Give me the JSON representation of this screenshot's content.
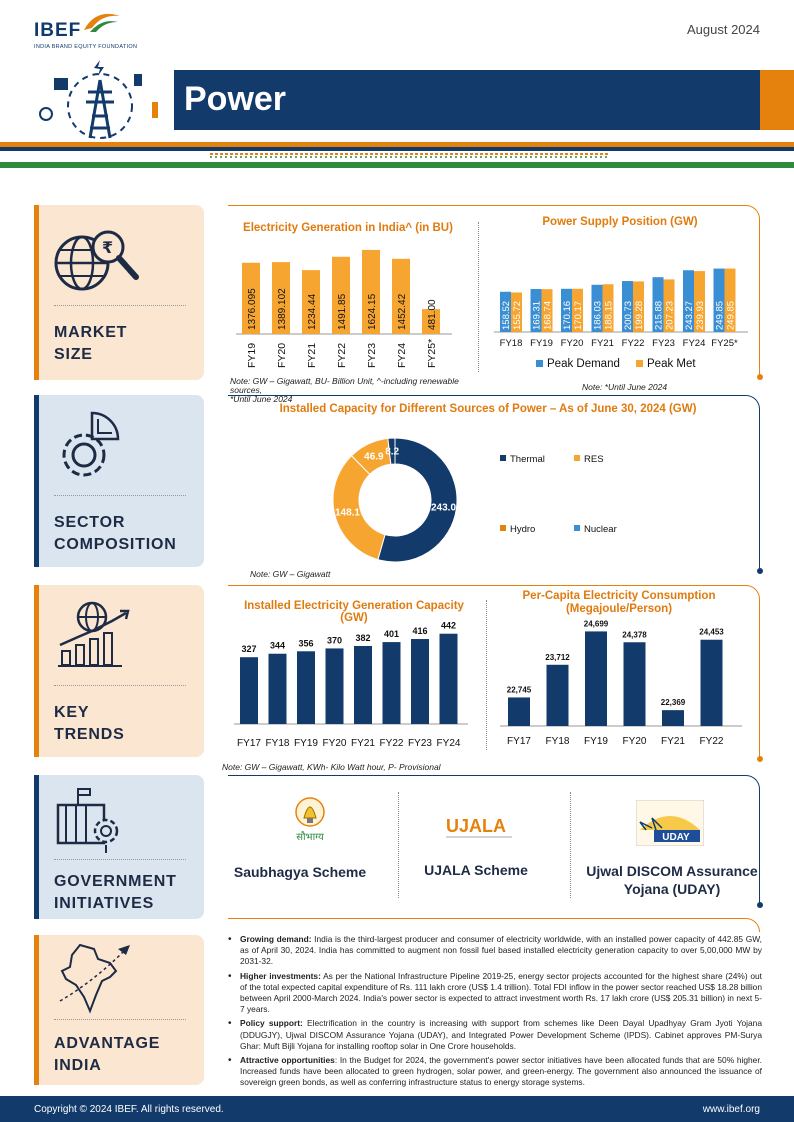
{
  "header": {
    "brand": "IBEF",
    "brand_sub": "INDIA BRAND EQUITY FOUNDATION",
    "date": "August 2024",
    "title": "Power"
  },
  "sections": {
    "market_size": [
      "MARKET",
      "SIZE"
    ],
    "sector_composition": [
      "SECTOR",
      "COMPOSITION"
    ],
    "key_trends": [
      "KEY",
      "TRENDS"
    ],
    "government_initiatives": [
      "GOVERNMENT",
      "INITIATIVES"
    ],
    "advantage_india": [
      "ADVANTAGE",
      "INDIA"
    ]
  },
  "colors": {
    "navy": "#123a6b",
    "orange": "#f7a531",
    "dark_orange": "#e07b10",
    "blue": "#3a8fd4",
    "chart_navy": "#0f3a6b"
  },
  "market_size": {
    "note_left": "Note: GW – Gigawatt, BU- Billion Unit, ^-including renewable sources,",
    "note_left_2": "*Until June 2024",
    "note_right": "Note: *Until June 2024"
  },
  "sector_composition": {
    "note": "Note: GW – Gigawatt"
  },
  "key_trends": {
    "note": "Note: GW – Gigawatt, KWh- Kilo Watt hour, P- Provisional"
  },
  "chart_data": [
    {
      "id": "generation",
      "type": "bar",
      "title": "Electricity Generation in India^ (in BU)",
      "categories": [
        "FY19",
        "FY20",
        "FY21",
        "FY22",
        "FY23",
        "FY24",
        "FY25*"
      ],
      "values": [
        1376.095,
        1389.102,
        1234.44,
        1491.85,
        1624.15,
        1452.42,
        481.0
      ],
      "labels": [
        "1376.095",
        "1389.102",
        "1234.44",
        "1491.85",
        "1624.15",
        "1452.42",
        "481.00"
      ],
      "ylim": [
        0,
        1700
      ],
      "color": "#f7a531"
    },
    {
      "id": "supply",
      "type": "bar",
      "title": "Power Supply Position (GW)",
      "categories": [
        "FY18",
        "FY19",
        "FY20",
        "FY21",
        "FY22",
        "FY23",
        "FY24",
        "FY25*"
      ],
      "series": [
        {
          "name": "Peak Demand",
          "values": [
            158.52,
            169.31,
            170.16,
            186.03,
            200.73,
            215.88,
            243.27,
            249.85
          ],
          "color": "#3a8fd4"
        },
        {
          "name": "Peak Met",
          "values": [
            155.72,
            168.74,
            170.17,
            188.15,
            199.28,
            207.23,
            239.93,
            249.85
          ],
          "color": "#f7a531"
        }
      ],
      "ylim": [
        0,
        260
      ]
    },
    {
      "id": "installed_sources",
      "type": "pie",
      "title": "Installed Capacity for Different Sources of Power – As of June 30, 2024 (GW)",
      "labels": [
        "Thermal",
        "RES",
        "Hydro",
        "Nuclear"
      ],
      "values": [
        243.0,
        148.1,
        46.9,
        8.2
      ],
      "value_labels": [
        "243.0",
        "148.1",
        "46.9",
        "8.2"
      ],
      "colors": [
        "#123a6b",
        "#f7a531",
        "#f7a531",
        "#123a6b"
      ],
      "legend_colors": [
        "#123a6b",
        "#f7a531",
        "#e5820e",
        "#3a8fd4"
      ]
    },
    {
      "id": "installed_capacity",
      "type": "bar",
      "title": "Installed Electricity Generation Capacity (GW)",
      "categories": [
        "FY17",
        "FY18",
        "FY19",
        "FY20",
        "FY21",
        "FY22",
        "FY23",
        "FY24"
      ],
      "values": [
        327,
        344,
        356,
        370,
        382,
        401,
        416,
        442
      ],
      "ylim": [
        0,
        470
      ],
      "color": "#123a6b"
    },
    {
      "id": "per_capita",
      "type": "bar",
      "title": "Per-Capita Electricity Consumption",
      "title_2": "(Megajoule/Person)",
      "categories": [
        "FY17",
        "FY18",
        "FY19",
        "FY20",
        "FY21",
        "FY22"
      ],
      "values": [
        22745,
        23712,
        24699,
        24378,
        22369,
        24453
      ],
      "labels": [
        "22,745",
        "23,712",
        "24,699",
        "24,378",
        "22,369",
        "24,453"
      ],
      "ylim": [
        21900,
        24800
      ],
      "color": "#123a6b"
    }
  ],
  "schemes": {
    "saubhagya": "Saubhagya Scheme",
    "ujala": "UJALA Scheme",
    "uday": "Ujwal DISCOM Assurance",
    "uday_2": "Yojana (UDAY)",
    "saubhagya_logo": "सौभाग्य",
    "ujala_logo": "UJALA",
    "uday_logo": "UDAY"
  },
  "advantage": [
    {
      "head": "Growing demand:",
      "text": " India is the third-largest producer and consumer of electricity worldwide, with an installed power capacity of 442.85 GW, as of April 30, 2024. India has committed to augment non fossil fuel based installed electricity generation capacity to over 5,00,000 MW by 2031-32."
    },
    {
      "head": "Higher investments:",
      "text": " As per the National Infrastructure Pipeline 2019-25, energy sector projects accounted for the highest share (24%) out of the total expected capital expenditure of Rs. 111 lakh crore (US$ 1.4 trillion). Total FDI inflow in the power sector reached US$ 18.28 billion between April 2000-March 2024. India's power sector is expected to attract investment worth Rs. 17 lakh crore (US$ 205.31 billion) in next 5-7 years."
    },
    {
      "head": "Policy support:",
      "text": " Electrification in the country is increasing with support from schemes like Deen Dayal Upadhyay Gram Jyoti Yojana (DDUGJY), Ujwal DISCOM Assurance Yojana (UDAY), and Integrated Power Development Scheme (IPDS). Cabinet approves PM-Surya Ghar: Muft Bijli Yojana for installing rooftop solar in One Crore households."
    },
    {
      "head": "Attractive opportunities",
      "text": ": In the Budget for 2024, the government's power sector initiatives have been allocated funds that are 50% higher. Increased funds have been allocated to green hydrogen, solar power, and green-energy. The government also announced the issuance of sovereign green bonds, as well as conferring infrastructure status to energy storage systems."
    }
  ],
  "footer": {
    "copyright": "Copyright © 2024 IBEF. All rights reserved.",
    "url": "www.ibef.org"
  }
}
